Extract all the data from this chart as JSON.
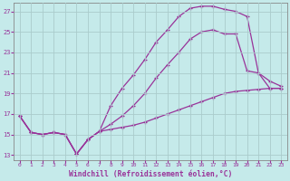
{
  "xlabel": "Windchill (Refroidissement éolien,°C)",
  "bg_color": "#c5eaea",
  "line_color": "#993399",
  "grid_color": "#aacccc",
  "xlim": [
    -0.5,
    23.5
  ],
  "ylim": [
    12.5,
    27.8
  ],
  "yticks": [
    13,
    15,
    17,
    19,
    21,
    23,
    25,
    27
  ],
  "xticks": [
    0,
    1,
    2,
    3,
    4,
    5,
    6,
    7,
    8,
    9,
    10,
    11,
    12,
    13,
    14,
    15,
    16,
    17,
    18,
    19,
    20,
    21,
    22,
    23
  ],
  "curve1_x": [
    0,
    1,
    2,
    3,
    4,
    5,
    6,
    7,
    8,
    9,
    10,
    11,
    12,
    13,
    14,
    15,
    16,
    17,
    18,
    19,
    20,
    21,
    22,
    23
  ],
  "curve1_y": [
    16.8,
    15.2,
    15.0,
    15.2,
    15.0,
    13.1,
    14.5,
    15.3,
    17.8,
    19.5,
    20.8,
    22.3,
    24.0,
    25.2,
    26.5,
    27.3,
    27.5,
    27.5,
    27.2,
    27.0,
    26.5,
    21.0,
    19.5,
    19.5
  ],
  "curve2_x": [
    0,
    1,
    2,
    3,
    4,
    5,
    6,
    7,
    8,
    9,
    10,
    11,
    12,
    13,
    14,
    15,
    16,
    17,
    18,
    19,
    20,
    21,
    22,
    23
  ],
  "curve2_y": [
    16.8,
    15.2,
    15.0,
    15.2,
    15.0,
    13.1,
    14.5,
    15.3,
    16.0,
    16.8,
    17.8,
    19.0,
    20.5,
    21.8,
    23.0,
    24.3,
    25.0,
    25.2,
    24.8,
    24.8,
    21.2,
    21.0,
    20.2,
    19.7
  ],
  "curve3_x": [
    0,
    1,
    2,
    3,
    4,
    5,
    6,
    7,
    8,
    9,
    10,
    11,
    12,
    13,
    14,
    15,
    16,
    17,
    18,
    19,
    20,
    21,
    22,
    23
  ],
  "curve3_y": [
    16.8,
    15.2,
    15.0,
    15.2,
    15.0,
    13.1,
    14.5,
    15.3,
    15.5,
    15.7,
    15.9,
    16.2,
    16.6,
    17.0,
    17.4,
    17.8,
    18.2,
    18.6,
    19.0,
    19.2,
    19.3,
    19.4,
    19.5,
    19.5
  ]
}
